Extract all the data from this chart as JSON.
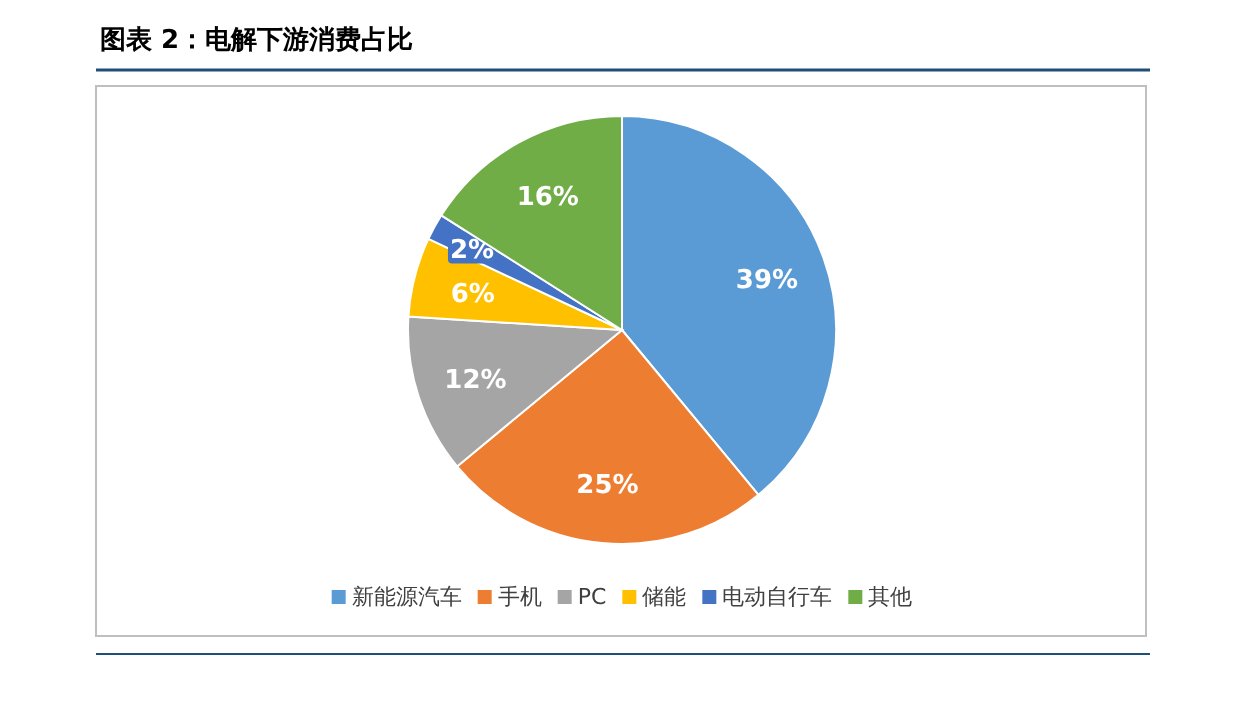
{
  "chart_data": {
    "type": "pie",
    "title": "图表 2：电解下游消费占比",
    "categories": [
      "新能源汽车",
      "手机",
      "PC",
      "储能",
      "电动自行车",
      "其他"
    ],
    "values": [
      39,
      25,
      12,
      6,
      2,
      16
    ],
    "colors": [
      "#5b9bd5",
      "#ed7d31",
      "#a5a5a5",
      "#ffc000",
      "#4472c4",
      "#70ad47"
    ],
    "value_labels": [
      "39%",
      "25%",
      "12%",
      "6%",
      "2%",
      "16%"
    ],
    "legend": "bottom"
  }
}
